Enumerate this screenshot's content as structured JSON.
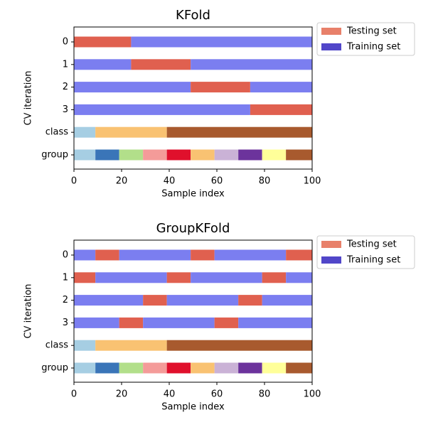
{
  "chart_data": [
    {
      "type": "broken_barh",
      "title": "KFold",
      "xlabel": "Sample index",
      "ylabel": "CV iteration",
      "categories": [
        "0",
        "1",
        "2",
        "3",
        "class",
        "group"
      ],
      "xlim": [
        0,
        100
      ],
      "xticks": [
        0,
        20,
        40,
        60,
        80,
        100
      ],
      "legend": [
        {
          "name": "Testing set",
          "color": "#e8806a"
        },
        {
          "name": "Training set",
          "color": "#5146c9"
        }
      ],
      "rows": [
        {
          "edges": [
            0,
            24,
            100
          ],
          "colors": [
            "#e0604f",
            "#7b7ef0"
          ]
        },
        {
          "edges": [
            0,
            24,
            49,
            100
          ],
          "colors": [
            "#7b7ef0",
            "#e0604f",
            "#7b7ef0"
          ]
        },
        {
          "edges": [
            0,
            49,
            74,
            100
          ],
          "colors": [
            "#7b7ef0",
            "#e0604f",
            "#7b7ef0"
          ]
        },
        {
          "edges": [
            0,
            74,
            100
          ],
          "colors": [
            "#7b7ef0",
            "#e0604f"
          ]
        },
        {
          "edges": [
            0,
            9,
            39,
            100
          ],
          "colors": [
            "#a6cee3",
            "#f9c272",
            "#a85a2e"
          ]
        },
        {
          "edges": [
            0,
            9,
            19,
            29,
            39,
            49,
            59,
            69,
            79,
            89,
            100
          ],
          "colors": [
            "#a6cee3",
            "#3a75b8",
            "#b2df8a",
            "#f49b99",
            "#e0102c",
            "#f9c272",
            "#cab2d6",
            "#6c339c",
            "#ffff99",
            "#a85a2e"
          ]
        }
      ]
    },
    {
      "type": "broken_barh",
      "title": "GroupKFold",
      "xlabel": "Sample index",
      "ylabel": "CV iteration",
      "categories": [
        "0",
        "1",
        "2",
        "3",
        "class",
        "group"
      ],
      "xlim": [
        0,
        100
      ],
      "xticks": [
        0,
        20,
        40,
        60,
        80,
        100
      ],
      "legend": [
        {
          "name": "Testing set",
          "color": "#e8806a"
        },
        {
          "name": "Training set",
          "color": "#5146c9"
        }
      ],
      "rows": [
        {
          "edges": [
            0,
            9,
            19,
            49,
            59,
            89,
            100
          ],
          "colors": [
            "#7b7ef0",
            "#e0604f",
            "#7b7ef0",
            "#e0604f",
            "#7b7ef0",
            "#e0604f"
          ]
        },
        {
          "edges": [
            0,
            9,
            39,
            49,
            79,
            89,
            100
          ],
          "colors": [
            "#e0604f",
            "#7b7ef0",
            "#e0604f",
            "#7b7ef0",
            "#e0604f",
            "#7b7ef0"
          ]
        },
        {
          "edges": [
            0,
            29,
            39,
            69,
            79,
            100
          ],
          "colors": [
            "#7b7ef0",
            "#e0604f",
            "#7b7ef0",
            "#e0604f",
            "#7b7ef0"
          ]
        },
        {
          "edges": [
            0,
            19,
            29,
            59,
            69,
            100
          ],
          "colors": [
            "#7b7ef0",
            "#e0604f",
            "#7b7ef0",
            "#e0604f",
            "#7b7ef0"
          ]
        },
        {
          "edges": [
            0,
            9,
            39,
            100
          ],
          "colors": [
            "#a6cee3",
            "#f9c272",
            "#a85a2e"
          ]
        },
        {
          "edges": [
            0,
            9,
            19,
            29,
            39,
            49,
            59,
            69,
            79,
            89,
            100
          ],
          "colors": [
            "#a6cee3",
            "#3a75b8",
            "#b2df8a",
            "#f49b99",
            "#e0102c",
            "#f9c272",
            "#cab2d6",
            "#6c339c",
            "#ffff99",
            "#a85a2e"
          ]
        }
      ]
    }
  ]
}
